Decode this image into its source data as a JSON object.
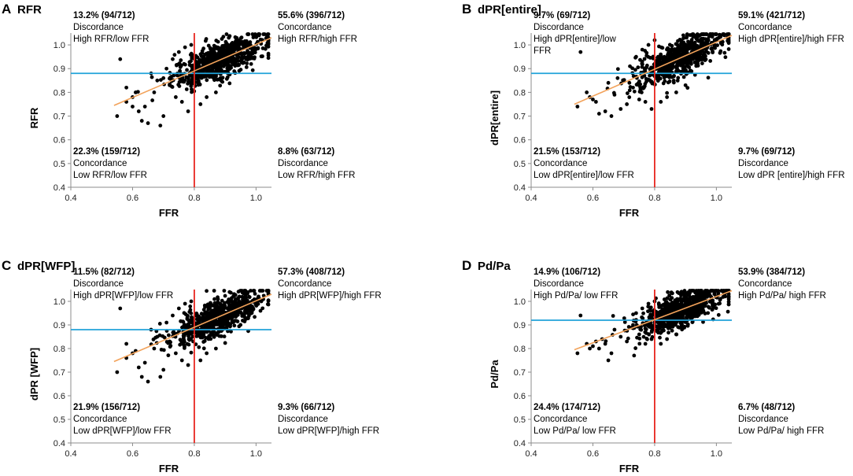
{
  "chart_data": [
    {
      "type": "scatter",
      "panel_letter": "A",
      "title": "RFR",
      "xlabel": "FFR",
      "ylabel": "RFR",
      "xlim": [
        0.4,
        1.05
      ],
      "ylim": [
        0.4,
        1.05
      ],
      "xticks": [
        "0.4",
        "0.6",
        "0.8",
        "1.0"
      ],
      "yticks": [
        "0.4",
        "0.5",
        "0.6",
        "0.7",
        "0.8",
        "0.9",
        "1.0"
      ],
      "threshold_x": 0.8,
      "threshold_y": 0.88,
      "fit_line": [
        [
          0.54,
          0.745
        ],
        [
          1.05,
          1.03
        ]
      ],
      "point_count": 712,
      "points": [
        [
          0.56,
          0.94
        ],
        [
          0.55,
          0.7
        ],
        [
          0.58,
          0.82
        ],
        [
          0.6,
          0.78
        ],
        [
          0.62,
          0.72
        ],
        [
          0.63,
          0.68
        ],
        [
          0.65,
          0.67
        ],
        [
          0.66,
          0.88
        ],
        [
          0.64,
          0.74
        ],
        [
          0.67,
          0.8
        ],
        [
          0.69,
          0.66
        ],
        [
          0.7,
          0.7
        ],
        [
          0.72,
          0.83
        ],
        [
          0.74,
          0.78
        ],
        [
          0.76,
          0.76
        ],
        [
          0.78,
          0.72
        ],
        [
          0.71,
          0.9
        ],
        [
          0.73,
          0.94
        ],
        [
          0.75,
          0.97
        ],
        [
          0.77,
          0.99
        ],
        [
          0.79,
          1.0
        ],
        [
          0.84,
          0.78
        ],
        [
          0.87,
          0.8
        ],
        [
          0.82,
          0.75
        ],
        [
          0.58,
          0.76
        ],
        [
          0.6,
          0.74
        ],
        [
          0.61,
          0.8
        ],
        [
          0.68,
          0.85
        ],
        [
          0.7,
          0.86
        ]
      ],
      "quadrants": {
        "top_left": {
          "stat": "13.2% (94/712)",
          "kind": "Discordance",
          "desc": "High RFR/low FFR"
        },
        "top_right": {
          "stat": "55.6% (396/712)",
          "kind": "Concordance",
          "desc": "High RFR/high FFR"
        },
        "bottom_left": {
          "stat": "22.3% (159/712)",
          "kind": "Concordance",
          "desc": "Low RFR/low FFR"
        },
        "bottom_right": {
          "stat": "8.8% (63/712)",
          "kind": "Discordance",
          "desc": "Low RFR/high FFR"
        }
      }
    },
    {
      "type": "scatter",
      "panel_letter": "B",
      "title": "dPR[entire]",
      "xlabel": "FFR",
      "ylabel": "dPR[entire]",
      "xlim": [
        0.4,
        1.05
      ],
      "ylim": [
        0.4,
        1.05
      ],
      "xticks": [
        "0.4",
        "0.6",
        "0.8",
        "1.0"
      ],
      "yticks": [
        "0.4",
        "0.5",
        "0.6",
        "0.7",
        "0.8",
        "0.9",
        "1.0"
      ],
      "threshold_x": 0.8,
      "threshold_y": 0.88,
      "fit_line": [
        [
          0.54,
          0.75
        ],
        [
          1.05,
          1.04
        ]
      ],
      "point_count": 712,
      "points": [
        [
          0.56,
          0.97
        ],
        [
          0.55,
          0.74
        ],
        [
          0.58,
          0.8
        ],
        [
          0.6,
          0.77
        ],
        [
          0.62,
          0.71
        ],
        [
          0.64,
          0.72
        ],
        [
          0.66,
          0.7
        ],
        [
          0.65,
          0.84
        ],
        [
          0.67,
          0.79
        ],
        [
          0.69,
          0.73
        ],
        [
          0.71,
          0.75
        ],
        [
          0.73,
          0.82
        ],
        [
          0.75,
          0.77
        ],
        [
          0.77,
          0.76
        ],
        [
          0.79,
          0.73
        ],
        [
          0.72,
          0.91
        ],
        [
          0.74,
          0.95
        ],
        [
          0.76,
          0.98
        ],
        [
          0.78,
          1.0
        ],
        [
          0.8,
          1.02
        ],
        [
          0.84,
          0.78
        ],
        [
          0.87,
          0.8
        ],
        [
          0.9,
          0.83
        ],
        [
          0.82,
          0.76
        ],
        [
          0.59,
          0.78
        ],
        [
          0.61,
          0.76
        ],
        [
          0.68,
          0.86
        ]
      ],
      "quadrants": {
        "top_left": {
          "stat": "9.7% (69/712)",
          "kind": "Discordance",
          "desc": "High dPR[entire]/low",
          "desc2": "FFR"
        },
        "top_right": {
          "stat": "59.1% (421/712)",
          "kind": "Concordance",
          "desc": "High dPR[entire]/high FFR"
        },
        "bottom_left": {
          "stat": "21.5% (153/712)",
          "kind": "Concordance",
          "desc": "Low dPR[entire]/low FFR"
        },
        "bottom_right": {
          "stat": "9.7% (69/712)",
          "kind": "Discordance",
          "desc": "Low dPR [entire]/high FFR"
        }
      }
    },
    {
      "type": "scatter",
      "panel_letter": "C",
      "title": "dPR[WFP]",
      "xlabel": "FFR",
      "ylabel": "dPR [WFP]",
      "xlim": [
        0.4,
        1.05
      ],
      "ylim": [
        0.4,
        1.05
      ],
      "xticks": [
        "0.4",
        "0.6",
        "0.8",
        "1.0"
      ],
      "yticks": [
        "0.4",
        "0.5",
        "0.6",
        "0.7",
        "0.8",
        "0.9",
        "1.0"
      ],
      "threshold_x": 0.8,
      "threshold_y": 0.88,
      "fit_line": [
        [
          0.54,
          0.745
        ],
        [
          1.05,
          1.03
        ]
      ],
      "point_count": 712,
      "points": [
        [
          0.56,
          0.97
        ],
        [
          0.55,
          0.7
        ],
        [
          0.58,
          0.82
        ],
        [
          0.6,
          0.78
        ],
        [
          0.62,
          0.72
        ],
        [
          0.63,
          0.68
        ],
        [
          0.65,
          0.66
        ],
        [
          0.66,
          0.88
        ],
        [
          0.64,
          0.74
        ],
        [
          0.67,
          0.8
        ],
        [
          0.69,
          0.68
        ],
        [
          0.7,
          0.71
        ],
        [
          0.72,
          0.83
        ],
        [
          0.74,
          0.78
        ],
        [
          0.76,
          0.75
        ],
        [
          0.78,
          0.73
        ],
        [
          0.71,
          0.91
        ],
        [
          0.73,
          0.94
        ],
        [
          0.75,
          0.97
        ],
        [
          0.77,
          0.99
        ],
        [
          0.79,
          1.0
        ],
        [
          0.84,
          0.78
        ],
        [
          0.87,
          0.8
        ],
        [
          0.82,
          0.75
        ],
        [
          0.58,
          0.76
        ],
        [
          0.61,
          0.79
        ],
        [
          0.68,
          0.85
        ]
      ],
      "quadrants": {
        "top_left": {
          "stat": "11.5% (82/712)",
          "kind": "Discordance",
          "desc": "High dPR[WFP]/low FFR"
        },
        "top_right": {
          "stat": "57.3% (408/712)",
          "kind": "Concordance",
          "desc": "High dPR[WFP]/high FFR"
        },
        "bottom_left": {
          "stat": "21.9% (156/712)",
          "kind": "Concordance",
          "desc": "Low dPR[WFP]/low FFR"
        },
        "bottom_right": {
          "stat": "9.3% (66/712)",
          "kind": "Discordance",
          "desc": "Low dPR[WFP]/high FFR"
        }
      }
    },
    {
      "type": "scatter",
      "panel_letter": "D",
      "title": "Pd/Pa",
      "xlabel": "FFR",
      "ylabel": "Pd/Pa",
      "xlim": [
        0.4,
        1.05
      ],
      "ylim": [
        0.4,
        1.05
      ],
      "xticks": [
        "0.4",
        "0.6",
        "0.8",
        "1.0"
      ],
      "yticks": [
        "0.4",
        "0.5",
        "0.6",
        "0.7",
        "0.8",
        "0.9",
        "1.0"
      ],
      "threshold_x": 0.8,
      "threshold_y": 0.92,
      "fit_line": [
        [
          0.54,
          0.795
        ],
        [
          1.05,
          1.045
        ]
      ],
      "point_count": 712,
      "points": [
        [
          0.56,
          0.94
        ],
        [
          0.55,
          0.78
        ],
        [
          0.58,
          0.82
        ],
        [
          0.6,
          0.81
        ],
        [
          0.62,
          0.8
        ],
        [
          0.63,
          0.84
        ],
        [
          0.65,
          0.75
        ],
        [
          0.66,
          0.78
        ],
        [
          0.67,
          0.88
        ],
        [
          0.69,
          0.85
        ],
        [
          0.71,
          0.83
        ],
        [
          0.73,
          0.9
        ],
        [
          0.75,
          0.86
        ],
        [
          0.77,
          0.82
        ],
        [
          0.79,
          0.84
        ],
        [
          0.74,
          0.95
        ],
        [
          0.76,
          0.97
        ],
        [
          0.78,
          0.99
        ],
        [
          0.8,
          1.0
        ],
        [
          0.84,
          0.84
        ],
        [
          0.87,
          0.86
        ],
        [
          0.82,
          0.82
        ],
        [
          0.59,
          0.8
        ],
        [
          0.61,
          0.83
        ],
        [
          0.64,
          0.82
        ]
      ],
      "quadrants": {
        "top_left": {
          "stat": "14.9% (106/712)",
          "kind": "Discordance",
          "desc": "High Pd/Pa/ low FFR"
        },
        "top_right": {
          "stat": "53.9% (384/712)",
          "kind": "Concordance",
          "desc": "High Pd/Pa/ high FFR"
        },
        "bottom_left": {
          "stat": "24.4% (174/712)",
          "kind": "Concordance",
          "desc": "Low Pd/Pa/ low FFR"
        },
        "bottom_right": {
          "stat": "6.7% (48/712)",
          "kind": "Discordance",
          "desc": "Low Pd/Pa/ high FFR"
        }
      }
    }
  ],
  "colors": {
    "threshold_x_line": "#e8261f",
    "threshold_y_line": "#22a3d9",
    "fit_line": "#f2a25a",
    "points": "#000000",
    "axis": "#8c8c8c"
  }
}
